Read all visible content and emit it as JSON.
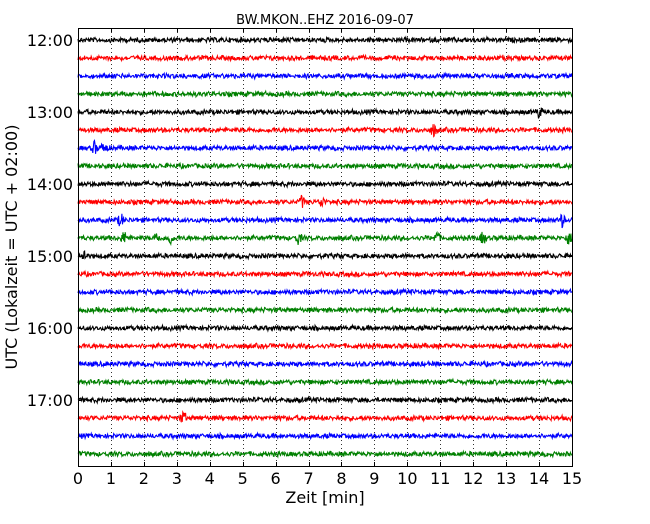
{
  "chart_data": {
    "type": "line",
    "title": "BW.MKON..EHZ 2016-09-07",
    "xlabel": "Zeit  [min]",
    "ylabel": "UTC (Lokalzeit = UTC + 02:00)",
    "x_range": [
      0,
      15
    ],
    "x_ticks": [
      0,
      1,
      2,
      3,
      4,
      5,
      6,
      7,
      8,
      9,
      10,
      11,
      12,
      13,
      14,
      15
    ],
    "y_ticks": [
      "12:00",
      "13:00",
      "14:00",
      "15:00",
      "16:00",
      "17:00"
    ],
    "grid": "vertical dotted",
    "color_cycle": [
      "#000000",
      "#ff0000",
      "#0000ff",
      "#008000"
    ],
    "traces": [
      {
        "time": "12:00",
        "color": "#000000",
        "events": []
      },
      {
        "time": "12:15",
        "color": "#ff0000",
        "events": []
      },
      {
        "time": "12:30",
        "color": "#0000ff",
        "events": []
      },
      {
        "time": "12:45",
        "color": "#008000",
        "events": []
      },
      {
        "time": "13:00",
        "color": "#000000",
        "events": [
          14.0
        ]
      },
      {
        "time": "13:15",
        "color": "#ff0000",
        "events": [
          10.8
        ]
      },
      {
        "time": "13:30",
        "color": "#0000ff",
        "events": [
          0.5,
          0.8
        ]
      },
      {
        "time": "13:45",
        "color": "#008000",
        "events": []
      },
      {
        "time": "14:00",
        "color": "#000000",
        "events": []
      },
      {
        "time": "14:15",
        "color": "#ff0000",
        "events": [
          6.8,
          7.4
        ]
      },
      {
        "time": "14:30",
        "color": "#0000ff",
        "events": [
          1.3,
          14.7
        ]
      },
      {
        "time": "14:45",
        "color": "#008000",
        "events": [
          1.4,
          2.4,
          2.8,
          6.7,
          10.9,
          12.3,
          14.9
        ]
      },
      {
        "time": "15:00",
        "color": "#000000",
        "events": [
          0.2
        ]
      },
      {
        "time": "15:15",
        "color": "#ff0000",
        "events": []
      },
      {
        "time": "15:30",
        "color": "#0000ff",
        "events": []
      },
      {
        "time": "15:45",
        "color": "#008000",
        "events": []
      },
      {
        "time": "16:00",
        "color": "#000000",
        "events": []
      },
      {
        "time": "16:15",
        "color": "#ff0000",
        "events": []
      },
      {
        "time": "16:30",
        "color": "#0000ff",
        "events": []
      },
      {
        "time": "16:45",
        "color": "#008000",
        "events": []
      },
      {
        "time": "17:00",
        "color": "#000000",
        "events": []
      },
      {
        "time": "17:15",
        "color": "#ff0000",
        "events": [
          3.2
        ]
      },
      {
        "time": "17:30",
        "color": "#0000ff",
        "events": []
      },
      {
        "time": "17:45",
        "color": "#008000",
        "events": []
      }
    ]
  }
}
